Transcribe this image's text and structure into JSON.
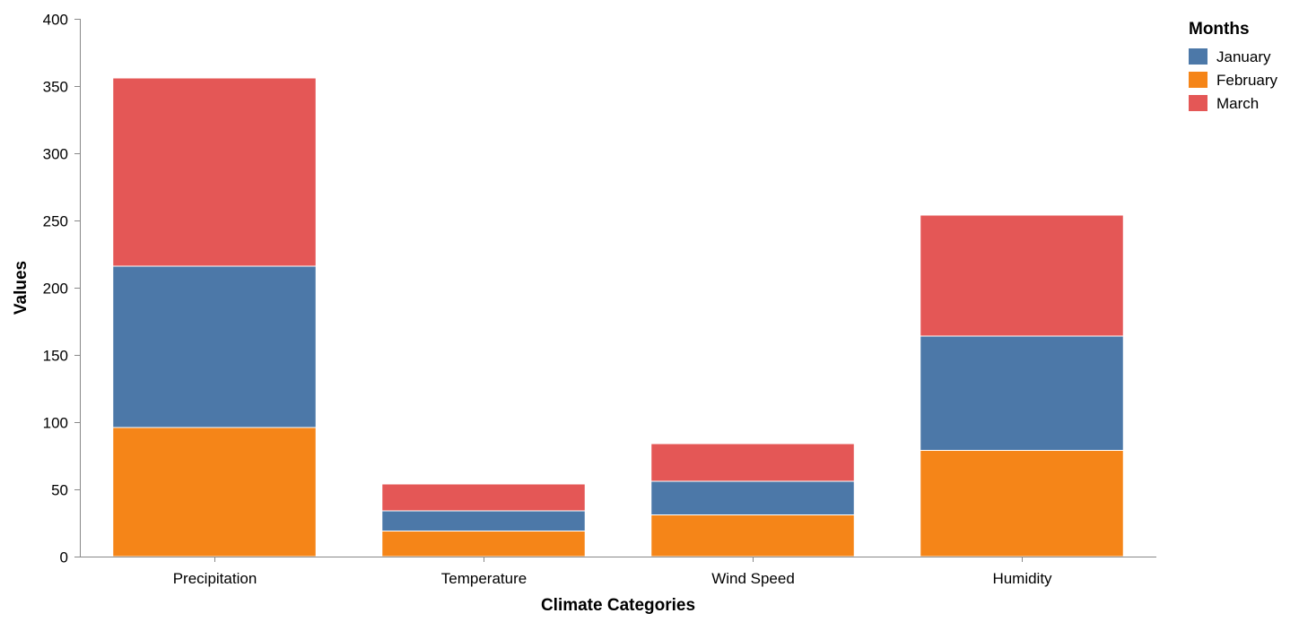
{
  "chart_data": {
    "type": "bar",
    "stacked": true,
    "xlabel": "Climate Categories",
    "ylabel": "Values",
    "ylim": [
      0,
      400
    ],
    "yticks": [
      0,
      50,
      100,
      150,
      200,
      250,
      300,
      350,
      400
    ],
    "categories": [
      "Precipitation",
      "Temperature",
      "Wind Speed",
      "Humidity"
    ],
    "stack_order": [
      "February",
      "January",
      "March"
    ],
    "series": [
      {
        "name": "January",
        "color": "#4c78a8",
        "values": [
          120,
          15,
          25,
          85
        ]
      },
      {
        "name": "February",
        "color": "#f58518",
        "values": [
          96,
          19,
          31,
          79
        ]
      },
      {
        "name": "March",
        "color": "#e45756",
        "values": [
          140,
          20,
          28,
          90
        ]
      }
    ],
    "legend": {
      "title": "Months",
      "position": "top-right"
    },
    "grid": false
  }
}
